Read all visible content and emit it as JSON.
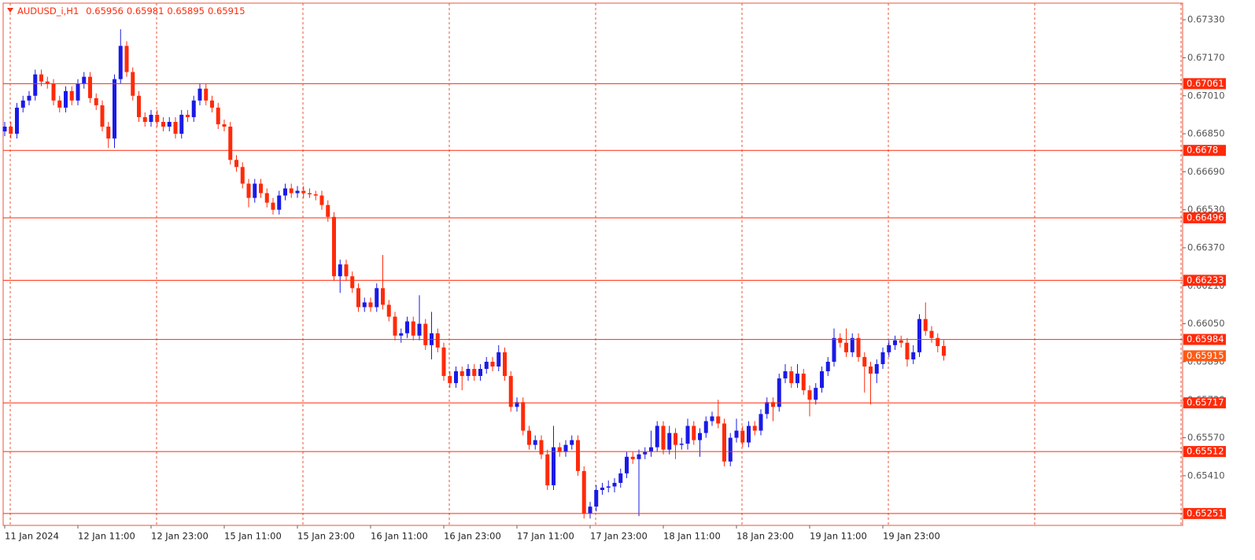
{
  "chart_data": {
    "type": "candlestick",
    "title": "AUDUSD_i,H1",
    "header_values": [
      0.65956,
      0.65981,
      0.65895,
      0.65915
    ],
    "colors": {
      "up": "#1a1ae6",
      "down": "#ff2a0a",
      "level": "#ff2a0a",
      "current": "#ff5a14",
      "grid": "#e8553a"
    },
    "open": [
      0.6686,
      0.6688,
      0.6685,
      0.6696,
      0.6699,
      0.6701,
      0.671,
      0.6707,
      0.6706,
      0.6699,
      0.6696,
      0.6703,
      0.6699,
      0.6706,
      0.6709,
      0.67,
      0.6697,
      0.6688,
      0.6683,
      0.6708,
      0.6722,
      0.6711,
      0.6701,
      0.6692,
      0.669,
      0.6693,
      0.669,
      0.6688,
      0.669,
      0.6685,
      0.6693,
      0.6692,
      0.6699,
      0.6704,
      0.6699,
      0.6696,
      0.6689,
      0.6688,
      0.6674,
      0.6671,
      0.6664,
      0.6658,
      0.6664,
      0.666,
      0.6656,
      0.6653,
      0.6659,
      0.6662,
      0.666,
      0.6661,
      0.666,
      0.66595,
      0.6659,
      0.6655,
      0.665,
      0.6625,
      0.663,
      0.6625,
      0.662,
      0.6612,
      0.6614,
      0.6612,
      0.662,
      0.6613,
      0.6608,
      0.66,
      0.6601,
      0.6606,
      0.66,
      0.6605,
      0.6596,
      0.6601,
      0.6595,
      0.6583,
      0.658,
      0.6585,
      0.6583,
      0.6586,
      0.6583,
      0.6586,
      0.6589,
      0.6587,
      0.6593,
      0.6583,
      0.657,
      0.6572,
      0.656,
      0.6554,
      0.6556,
      0.655,
      0.6537,
      0.6553,
      0.6551,
      0.6554,
      0.6556,
      0.6543,
      0.6525,
      0.6528,
      0.6535,
      0.6536,
      0.65365,
      0.6538,
      0.6542,
      0.6549,
      0.6548,
      0.655,
      0.6551,
      0.6553,
      0.6562,
      0.6552,
      0.6559,
      0.6554,
      0.65545,
      0.6562,
      0.6556,
      0.6559,
      0.6564,
      0.6566,
      0.6563,
      0.6547,
      0.6557,
      0.656,
      0.6555,
      0.6562,
      0.656,
      0.6567,
      0.6572,
      0.657,
      0.6582,
      0.6585,
      0.658,
      0.6584,
      0.6577,
      0.6573,
      0.6578,
      0.6585,
      0.6589,
      0.6599,
      0.6597,
      0.6593,
      0.6599,
      0.6591,
      0.6587,
      0.6584,
      0.6588,
      0.6593,
      0.6596,
      0.6598,
      0.6597,
      0.659,
      0.6593,
      0.6607,
      0.6602,
      0.6599,
      0.65956
    ],
    "high": [
      0.669,
      0.669,
      0.6698,
      0.6701,
      0.6703,
      0.6712,
      0.6712,
      0.6709,
      0.6708,
      0.6701,
      0.6705,
      0.6705,
      0.6708,
      0.6711,
      0.6711,
      0.6702,
      0.6699,
      0.669,
      0.671,
      0.6729,
      0.6724,
      0.6713,
      0.6703,
      0.6694,
      0.6695,
      0.6695,
      0.6692,
      0.6692,
      0.6692,
      0.6695,
      0.6695,
      0.6701,
      0.6706,
      0.6706,
      0.6701,
      0.6698,
      0.6691,
      0.669,
      0.6676,
      0.6673,
      0.6666,
      0.6666,
      0.6666,
      0.6662,
      0.6658,
      0.6661,
      0.6664,
      0.6664,
      0.6663,
      0.6663,
      0.6662,
      0.6661,
      0.6661,
      0.6657,
      0.6652,
      0.6632,
      0.6632,
      0.6627,
      0.6622,
      0.6616,
      0.6616,
      0.6622,
      0.6634,
      0.6615,
      0.661,
      0.6603,
      0.6608,
      0.6608,
      0.6617,
      0.6607,
      0.661,
      0.6603,
      0.6597,
      0.6585,
      0.6587,
      0.6587,
      0.6588,
      0.6588,
      0.6588,
      0.6591,
      0.6591,
      0.6596,
      0.6595,
      0.6585,
      0.6574,
      0.6574,
      0.6562,
      0.6558,
      0.6558,
      0.6552,
      0.6562,
      0.6555,
      0.6556,
      0.6558,
      0.6558,
      0.6545,
      0.653,
      0.6537,
      0.6538,
      0.6539,
      0.654,
      0.6544,
      0.6551,
      0.6551,
      0.6552,
      0.6553,
      0.656,
      0.6564,
      0.6564,
      0.6562,
      0.6561,
      0.6557,
      0.6565,
      0.6564,
      0.6561,
      0.6566,
      0.6568,
      0.6573,
      0.6565,
      0.6559,
      0.6565,
      0.6562,
      0.6564,
      0.6564,
      0.6569,
      0.6574,
      0.6574,
      0.6584,
      0.6588,
      0.6587,
      0.6588,
      0.6586,
      0.6579,
      0.658,
      0.6587,
      0.6591,
      0.6603,
      0.6601,
      0.6603,
      0.6601,
      0.6601,
      0.6593,
      0.6589,
      0.659,
      0.6595,
      0.6598,
      0.66,
      0.66,
      0.6599,
      0.6596,
      0.6609,
      0.6614,
      0.6604,
      0.6601,
      0.65981
    ],
    "low": [
      0.6684,
      0.6683,
      0.6683,
      0.6694,
      0.6697,
      0.6699,
      0.6705,
      0.6704,
      0.6697,
      0.6694,
      0.6694,
      0.6697,
      0.6697,
      0.6704,
      0.6698,
      0.6695,
      0.6686,
      0.6679,
      0.6679,
      0.6706,
      0.6709,
      0.6699,
      0.669,
      0.6688,
      0.6688,
      0.6688,
      0.6686,
      0.6686,
      0.6683,
      0.6683,
      0.669,
      0.669,
      0.6697,
      0.6697,
      0.6694,
      0.6687,
      0.6686,
      0.6672,
      0.6669,
      0.6662,
      0.6654,
      0.6656,
      0.6658,
      0.6654,
      0.6651,
      0.6651,
      0.6657,
      0.6658,
      0.6658,
      0.6658,
      0.6658,
      0.6657,
      0.6653,
      0.6648,
      0.6623,
      0.6618,
      0.6623,
      0.6618,
      0.661,
      0.661,
      0.661,
      0.661,
      0.6611,
      0.6606,
      0.6598,
      0.6597,
      0.6599,
      0.6598,
      0.6598,
      0.6594,
      0.659,
      0.6593,
      0.6581,
      0.6578,
      0.6578,
      0.6577,
      0.6581,
      0.6581,
      0.6581,
      0.6584,
      0.6585,
      0.6585,
      0.6581,
      0.6568,
      0.6568,
      0.6558,
      0.6552,
      0.6552,
      0.6548,
      0.6535,
      0.6535,
      0.6549,
      0.6549,
      0.6552,
      0.6541,
      0.6523,
      0.6523,
      0.6526,
      0.6533,
      0.6534,
      0.6534,
      0.6536,
      0.654,
      0.6546,
      0.6524,
      0.6548,
      0.6549,
      0.6551,
      0.655,
      0.655,
      0.6548,
      0.6552,
      0.6552,
      0.6554,
      0.6549,
      0.6557,
      0.6562,
      0.6561,
      0.6545,
      0.6545,
      0.6555,
      0.6553,
      0.6553,
      0.6558,
      0.6558,
      0.6565,
      0.6564,
      0.6568,
      0.658,
      0.6578,
      0.6578,
      0.6575,
      0.6566,
      0.6571,
      0.6576,
      0.6583,
      0.6587,
      0.6595,
      0.6591,
      0.6591,
      0.6589,
      0.6576,
      0.6571,
      0.658,
      0.6586,
      0.6591,
      0.6594,
      0.6595,
      0.6587,
      0.6588,
      0.6591,
      0.66,
      0.6597,
      0.6593,
      0.65895
    ],
    "close": [
      0.6688,
      0.6685,
      0.6696,
      0.6699,
      0.6701,
      0.671,
      0.6707,
      0.6706,
      0.6699,
      0.6696,
      0.6703,
      0.6699,
      0.6706,
      0.6709,
      0.67,
      0.6697,
      0.6688,
      0.6683,
      0.6708,
      0.6722,
      0.6711,
      0.6701,
      0.6692,
      0.669,
      0.6693,
      0.669,
      0.6688,
      0.669,
      0.6685,
      0.6693,
      0.6692,
      0.6699,
      0.6704,
      0.6699,
      0.6696,
      0.6689,
      0.6688,
      0.6674,
      0.6671,
      0.6664,
      0.6658,
      0.6664,
      0.666,
      0.6656,
      0.6653,
      0.6659,
      0.6662,
      0.666,
      0.6661,
      0.666,
      0.66595,
      0.6659,
      0.6655,
      0.665,
      0.6625,
      0.663,
      0.6625,
      0.662,
      0.6612,
      0.6614,
      0.6612,
      0.662,
      0.6613,
      0.6608,
      0.66,
      0.6601,
      0.6606,
      0.66,
      0.6605,
      0.6596,
      0.6601,
      0.6595,
      0.6583,
      0.658,
      0.6585,
      0.6583,
      0.6586,
      0.6583,
      0.6586,
      0.6589,
      0.6587,
      0.6593,
      0.6583,
      0.657,
      0.6572,
      0.656,
      0.6554,
      0.6556,
      0.655,
      0.6537,
      0.6553,
      0.6551,
      0.6554,
      0.6556,
      0.6543,
      0.6525,
      0.6528,
      0.6535,
      0.6536,
      0.65365,
      0.6538,
      0.6542,
      0.6549,
      0.6548,
      0.655,
      0.6551,
      0.6553,
      0.6562,
      0.6552,
      0.6559,
      0.6554,
      0.65545,
      0.6562,
      0.6556,
      0.6559,
      0.6564,
      0.6566,
      0.6563,
      0.6547,
      0.6557,
      0.656,
      0.6555,
      0.6562,
      0.656,
      0.6567,
      0.6572,
      0.657,
      0.6582,
      0.6585,
      0.658,
      0.6584,
      0.6577,
      0.6573,
      0.6578,
      0.6585,
      0.6589,
      0.6599,
      0.6597,
      0.6593,
      0.6599,
      0.6591,
      0.6587,
      0.6584,
      0.6588,
      0.6593,
      0.6596,
      0.6598,
      0.6597,
      0.659,
      0.6593,
      0.6607,
      0.6602,
      0.6599,
      0.65956,
      0.65915
    ],
    "ylim": [
      0.65201,
      0.674
    ],
    "yticks": [
      {
        "value": 0.6733,
        "label": "0.67330"
      },
      {
        "value": 0.6717,
        "label": "0.67170"
      },
      {
        "value": 0.6701,
        "label": "0.67010"
      },
      {
        "value": 0.6685,
        "label": "0.66850"
      },
      {
        "value": 0.6669,
        "label": "0.66690"
      },
      {
        "value": 0.6653,
        "label": "0.66530"
      },
      {
        "value": 0.6637,
        "label": "0.66370"
      },
      {
        "value": 0.6621,
        "label": "0.66210"
      },
      {
        "value": 0.6605,
        "label": "0.66050"
      },
      {
        "value": 0.6589,
        "label": "0.65890"
      },
      {
        "value": 0.6573,
        "label": "0.65730"
      },
      {
        "value": 0.6557,
        "label": "0.65570"
      },
      {
        "value": 0.6541,
        "label": "0.65410"
      }
    ],
    "xticks": [
      {
        "value": 0,
        "label": "11 Jan 2024"
      },
      {
        "value": 12,
        "label": "12 Jan 11:00"
      },
      {
        "value": 24,
        "label": "12 Jan 23:00"
      },
      {
        "value": 36,
        "label": "15 Jan 11:00"
      },
      {
        "value": 48,
        "label": "15 Jan 23:00"
      },
      {
        "value": 60,
        "label": "16 Jan 11:00"
      },
      {
        "value": 72,
        "label": "16 Jan 23:00"
      },
      {
        "value": 84,
        "label": "17 Jan 11:00"
      },
      {
        "value": 96,
        "label": "17 Jan 23:00"
      },
      {
        "value": 108,
        "label": "18 Jan 11:00"
      },
      {
        "value": 120,
        "label": "18 Jan 23:00"
      },
      {
        "value": 132,
        "label": "19 Jan 11:00"
      },
      {
        "value": 144,
        "label": "19 Jan 23:00"
      }
    ],
    "levels": [
      0.67061,
      0.6678,
      0.66496,
      0.66233,
      0.65984,
      0.65717,
      0.65512,
      0.65251
    ],
    "current_price": 0.65915
  }
}
